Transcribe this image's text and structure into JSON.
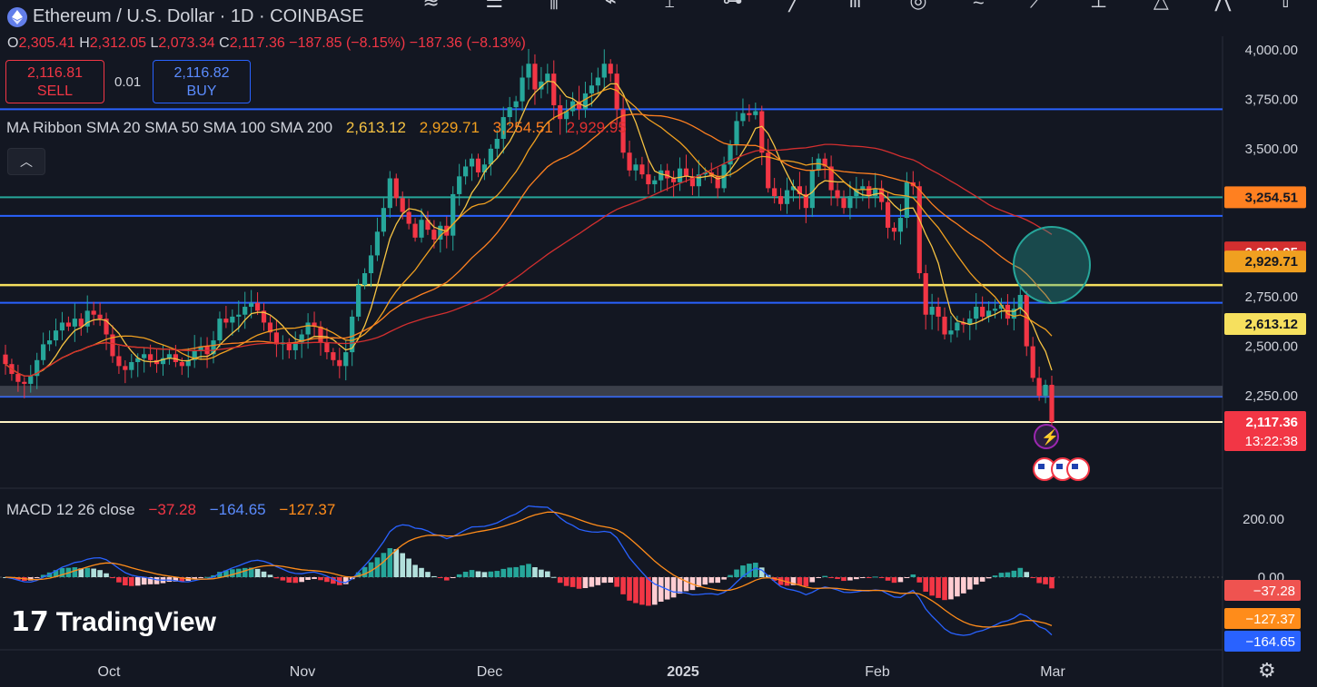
{
  "header": {
    "title": "Ethereum / U.S. Dollar · 1D · COINBASE",
    "ohlc": {
      "o_label": "O",
      "o": "2,305.41",
      "h_label": "H",
      "h": "2,312.05",
      "l_label": "L",
      "l": "2,073.34",
      "c_label": "C",
      "c": "2,117.36",
      "change": "−187.85 (−8.15%)",
      "change2": "−187.36 (−8.13%)"
    },
    "sell_price": "2,116.81",
    "sell_label": "SELL",
    "spread": "0.01",
    "buy_price": "2,116.82",
    "buy_label": "BUY"
  },
  "ma_legend": {
    "label": "MA Ribbon SMA 20 SMA 50 SMA 100 SMA 200",
    "v20": "2,613.12",
    "v50": "2,929.71",
    "v100": "3,254.51",
    "v200": "2,929.95"
  },
  "macd_legend": {
    "label": "MACD 12 26 close",
    "hist": "−37.28",
    "macd": "−164.65",
    "signal": "−127.37"
  },
  "logo": "TradingView",
  "icons": [
    "collapse-icon",
    "settings-icon",
    "ethereum-icon",
    "us-flag-icon",
    "lightning-icon"
  ],
  "colors": {
    "bg": "#131722",
    "up": "#26a69a",
    "down": "#f23645",
    "sma20": "#f6c343",
    "sma50": "#f0a020",
    "sma100": "#ff8020",
    "sma200": "#d32f2f",
    "macd": "#2962ff",
    "signal": "#ff8c1a"
  },
  "chart_data": [
    {
      "type": "candlestick",
      "title": "Ethereum / U.S. Dollar · 1D · COINBASE",
      "x_tick_labels": [
        "Oct",
        "Nov",
        "Dec",
        "2025",
        "Feb",
        "Mar"
      ],
      "y_ticks": [
        4000,
        3750,
        3500,
        3250,
        3000,
        2750,
        2500,
        2250
      ],
      "y_tick_labels": [
        "4,000.00",
        "3,750.00",
        "3,500.00",
        "3,250.00",
        "3,000.00",
        "2,750.00",
        "2,500.00",
        "2,250.00"
      ],
      "ylim": [
        1980,
        4150
      ],
      "series_closes": [
        2410,
        2360,
        2320,
        2310,
        2350,
        2430,
        2510,
        2530,
        2580,
        2620,
        2600,
        2640,
        2600,
        2680,
        2660,
        2640,
        2560,
        2450,
        2400,
        2380,
        2420,
        2440,
        2460,
        2430,
        2410,
        2440,
        2460,
        2420,
        2400,
        2430,
        2480,
        2500,
        2460,
        2530,
        2640,
        2620,
        2650,
        2660,
        2700,
        2720,
        2680,
        2620,
        2570,
        2510,
        2520,
        2480,
        2520,
        2560,
        2620,
        2600,
        2520,
        2470,
        2430,
        2400,
        2470,
        2650,
        2810,
        2870,
        2960,
        3080,
        3200,
        3350,
        3250,
        3180,
        3120,
        3050,
        3140,
        3090,
        3040,
        3110,
        3060,
        3270,
        3360,
        3410,
        3450,
        3380,
        3420,
        3500,
        3550,
        3660,
        3710,
        3740,
        3860,
        3930,
        3800,
        3840,
        3880,
        3720,
        3650,
        3690,
        3740,
        3700,
        3780,
        3820,
        3860,
        3930,
        3880,
        3700,
        3480,
        3390,
        3420,
        3370,
        3320,
        3340,
        3390,
        3350,
        3330,
        3400,
        3360,
        3310,
        3370,
        3380,
        3360,
        3300,
        3420,
        3520,
        3640,
        3680,
        3670,
        3690,
        3480,
        3300,
        3260,
        3220,
        3290,
        3310,
        3270,
        3200,
        3390,
        3450,
        3410,
        3290,
        3250,
        3200,
        3260,
        3290,
        3310,
        3260,
        3300,
        3230,
        3100,
        3080,
        3150,
        3330,
        3310,
        2870,
        2660,
        2700,
        2650,
        2560,
        2580,
        2620,
        2610,
        2640,
        2700,
        2650,
        2680,
        2690,
        2710,
        2640,
        2690,
        2760,
        2500,
        2340,
        2250,
        2305,
        2117
      ],
      "last_label": "2,117.36",
      "countdown": "13:22:38",
      "ma_values": {
        "sma20": "2,613.12",
        "sma50": "2,929.71",
        "sma100": "3,254.51",
        "sma200": "2,929.95"
      },
      "levels": [
        {
          "value": 3700,
          "color": "#2962ff"
        },
        {
          "value": 3254,
          "color": "#26a69a"
        },
        {
          "value": 3160,
          "color": "#2962ff"
        },
        {
          "value": 2810,
          "color": "#f6e05e"
        },
        {
          "value": 2720,
          "color": "#2962ff"
        },
        {
          "value": 2245,
          "color": "#2962ff"
        },
        {
          "value": 2117,
          "color": "#fff3c4"
        }
      ]
    },
    {
      "type": "bar",
      "title": "MACD 12 26 close",
      "y_tick_labels": [
        "200.00",
        "0.00"
      ],
      "ylim": [
        -330,
        300
      ],
      "values_summary": {
        "histogram": "−37.28",
        "macd": "−164.65",
        "signal": "−127.37"
      },
      "scale_labels": {
        "histogram": "−37.28",
        "signal": "−127.37",
        "macd": "−164.65"
      }
    }
  ]
}
